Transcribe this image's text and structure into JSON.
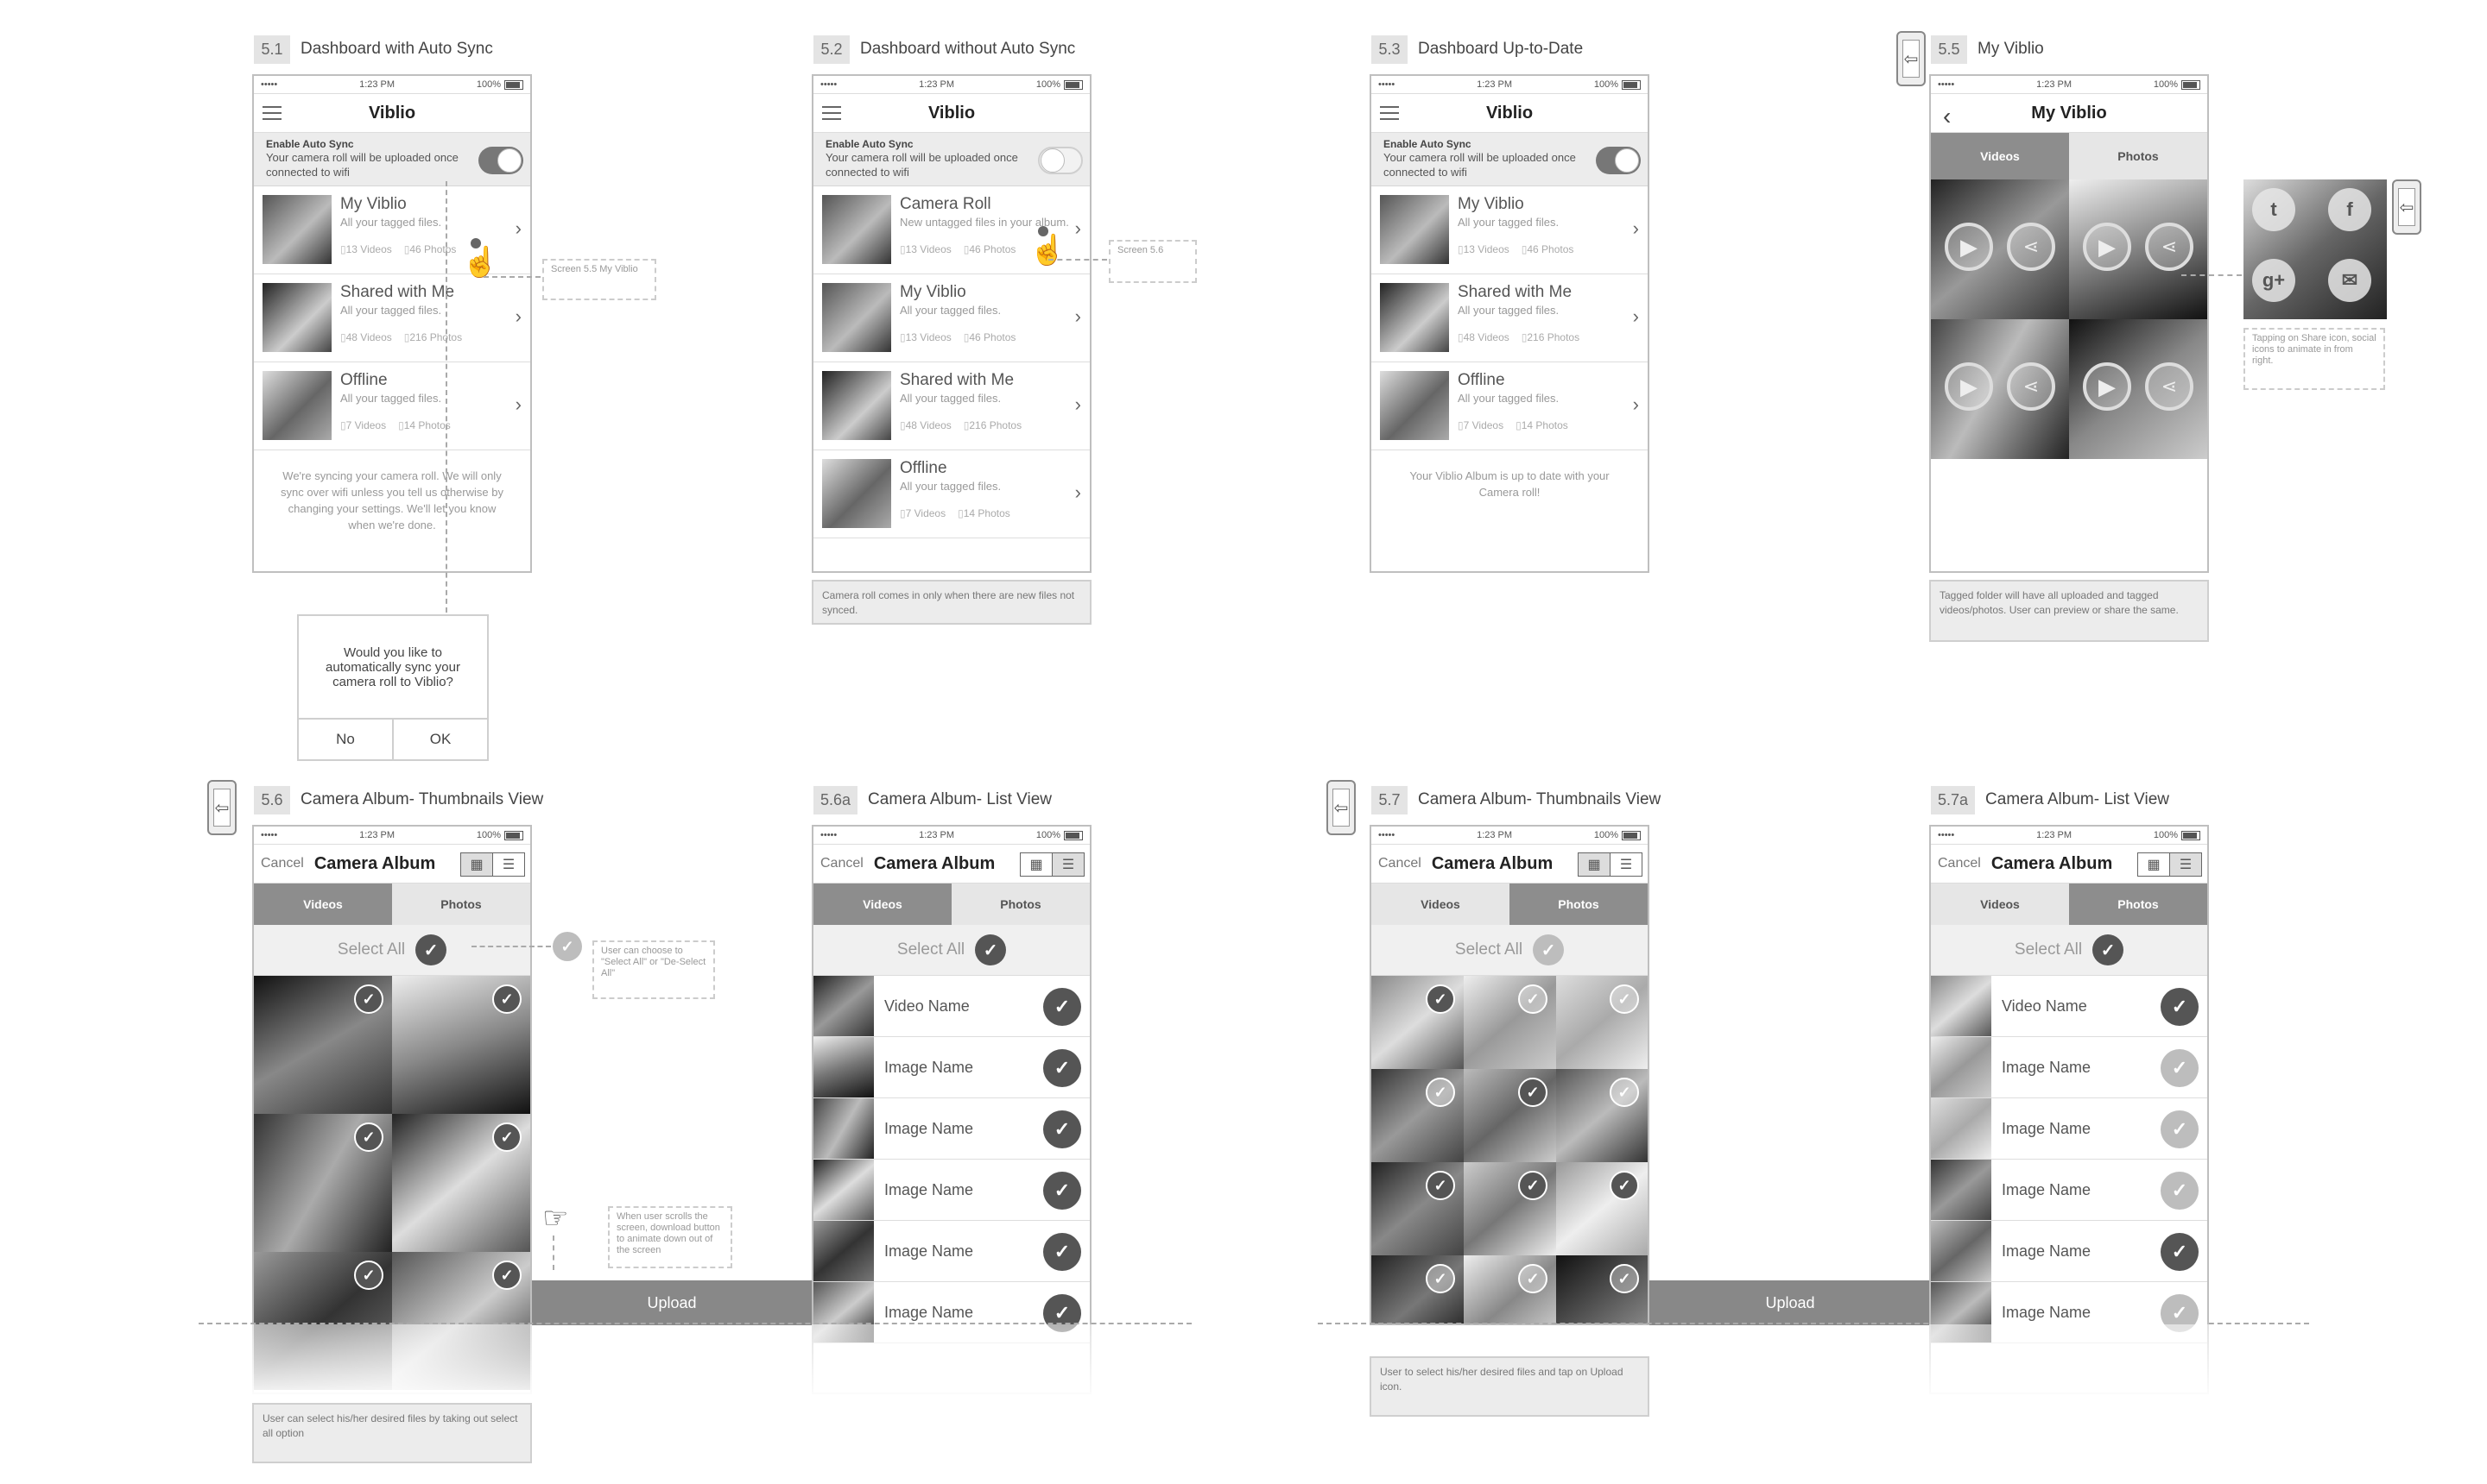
{
  "screens": {
    "s51": {
      "num": "5.1",
      "title": "Dashboard with Auto Sync"
    },
    "s52": {
      "num": "5.2",
      "title": "Dashboard without Auto Sync"
    },
    "s53": {
      "num": "5.3",
      "title": "Dashboard Up-to-Date"
    },
    "s55": {
      "num": "5.5",
      "title": "My Viblio"
    },
    "s56": {
      "num": "5.6",
      "title": "Camera Album- Thumbnails View"
    },
    "s56a": {
      "num": "5.6a",
      "title": "Camera Album- List View"
    },
    "s57": {
      "num": "5.7",
      "title": "Camera Album- Thumbnails View"
    },
    "s57a": {
      "num": "5.7a",
      "title": "Camera Album- List View"
    }
  },
  "status_bar": {
    "signal": "•••••",
    "time": "1:23 PM",
    "battery": "100%"
  },
  "app_title": "Viblio",
  "my_viblio_title": "My Viblio",
  "camera_album_title": "Camera Album",
  "cancel_label": "Cancel",
  "sync": {
    "title": "Enable Auto Sync",
    "desc": "Your camera roll will be uploaded once connected to wifi"
  },
  "albums": {
    "my_viblio": {
      "name": "My Viblio",
      "desc": "All your tagged files.",
      "videos": "13 Videos",
      "photos": "46 Photos"
    },
    "shared": {
      "name": "Shared with Me",
      "desc": "All your tagged files.",
      "videos": "48 Videos",
      "photos": "216 Photos"
    },
    "offline": {
      "name": "Offline",
      "desc": "All your tagged files.",
      "videos": "7 Videos",
      "photos": "14 Photos"
    },
    "camera_roll": {
      "name": "Camera Roll",
      "desc": "New untagged files in your album.",
      "videos": "13 Videos",
      "photos": "46 Photos"
    }
  },
  "footers": {
    "s51": "We're syncing your camera roll. We will only sync over wifi unless you tell us otherwise by changing your settings. We'll let you know when we're done.",
    "s53": "Your Viblio Album is up to date with your Camera roll!"
  },
  "dialog": {
    "question": "Would you like to automatically sync your camera roll to Viblio?",
    "no": "No",
    "ok": "OK"
  },
  "notes": {
    "s52": "Camera roll comes in only when there are new files not synced.",
    "s55": "Tagged folder will have all uploaded and tagged videos/photos. User can preview or share the same.",
    "s56": "User can select his/her desired files by taking out select all option",
    "s57": "User to select his/her desired files and tap on Upload icon."
  },
  "callouts": {
    "screen55": "Screen 5.5 My Viblio",
    "screen56": "Screen 5.6",
    "share": "Tapping on Share icon, social icons to animate in from right.",
    "select": "User can choose to \"Select All\" or \"De-Select All\"",
    "scroll": "When user scrolls the screen, download button to animate down out of the screen"
  },
  "tabs": {
    "videos": "Videos",
    "photos": "Photos"
  },
  "select_all": "Select All",
  "upload": "Upload",
  "list_s56a": [
    "Video Name",
    "Image Name",
    "Image Name",
    "Image Name",
    "Image Name",
    "Image Name"
  ],
  "list_s57a": [
    "Video Name",
    "Image Name",
    "Image Name",
    "Image Name",
    "Image Name",
    "Image Name"
  ],
  "social": {
    "twitter": "twitter-icon",
    "facebook": "f",
    "gplus": "g+",
    "mail": "mail-icon"
  },
  "icons": {
    "check": "✓",
    "chevron": "›",
    "back": "‹",
    "grid": "▦",
    "list": "☰",
    "play": "▶",
    "share": "share-icon",
    "exit": "exit-icon"
  },
  "colors": {
    "dark_check": "#555555",
    "light_check": "#bdbdbd",
    "upload_bar": "#888888",
    "tab_active": "#8d8d8d"
  }
}
